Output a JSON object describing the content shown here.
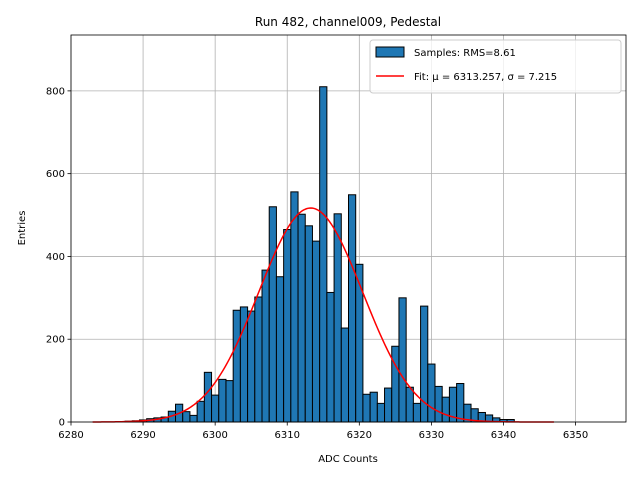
{
  "chart_data": {
    "type": "bar",
    "title": "Run 482, channel009, Pedestal",
    "xlabel": "ADC Counts",
    "ylabel": "Entries",
    "xlim": [
      6280,
      6357
    ],
    "ylim": [
      0,
      935
    ],
    "xticks": [
      6280,
      6290,
      6300,
      6310,
      6320,
      6330,
      6340,
      6350
    ],
    "yticks": [
      0,
      200,
      400,
      600,
      800
    ],
    "grid": true,
    "legend_position": "top-right",
    "colors": {
      "bars": "#1f77b4",
      "bar_edge": "#000000",
      "fit_line": "#ff0000",
      "grid": "#b0b0b0"
    },
    "histogram": {
      "name": "Samples: RMS=8.61",
      "bin_width": 1,
      "bins": [
        {
          "x": 6288,
          "y": 2
        },
        {
          "x": 6289,
          "y": 3
        },
        {
          "x": 6290,
          "y": 5
        },
        {
          "x": 6291,
          "y": 8
        },
        {
          "x": 6292,
          "y": 10
        },
        {
          "x": 6293,
          "y": 12
        },
        {
          "x": 6294,
          "y": 26
        },
        {
          "x": 6295,
          "y": 43
        },
        {
          "x": 6296,
          "y": 25
        },
        {
          "x": 6297,
          "y": 16
        },
        {
          "x": 6298,
          "y": 50
        },
        {
          "x": 6299,
          "y": 120
        },
        {
          "x": 6300,
          "y": 65
        },
        {
          "x": 6301,
          "y": 103
        },
        {
          "x": 6302,
          "y": 100
        },
        {
          "x": 6303,
          "y": 270
        },
        {
          "x": 6304,
          "y": 278
        },
        {
          "x": 6305,
          "y": 268
        },
        {
          "x": 6306,
          "y": 302
        },
        {
          "x": 6307,
          "y": 367
        },
        {
          "x": 6308,
          "y": 520
        },
        {
          "x": 6309,
          "y": 351
        },
        {
          "x": 6310,
          "y": 465
        },
        {
          "x": 6311,
          "y": 556
        },
        {
          "x": 6312,
          "y": 502
        },
        {
          "x": 6313,
          "y": 474
        },
        {
          "x": 6314,
          "y": 437
        },
        {
          "x": 6315,
          "y": 810
        },
        {
          "x": 6316,
          "y": 313
        },
        {
          "x": 6317,
          "y": 503
        },
        {
          "x": 6318,
          "y": 227
        },
        {
          "x": 6319,
          "y": 549
        },
        {
          "x": 6320,
          "y": 381
        },
        {
          "x": 6321,
          "y": 67
        },
        {
          "x": 6322,
          "y": 72
        },
        {
          "x": 6323,
          "y": 45
        },
        {
          "x": 6324,
          "y": 82
        },
        {
          "x": 6325,
          "y": 183
        },
        {
          "x": 6326,
          "y": 300
        },
        {
          "x": 6327,
          "y": 84
        },
        {
          "x": 6328,
          "y": 45
        },
        {
          "x": 6329,
          "y": 280
        },
        {
          "x": 6330,
          "y": 140
        },
        {
          "x": 6331,
          "y": 86
        },
        {
          "x": 6332,
          "y": 60
        },
        {
          "x": 6333,
          "y": 84
        },
        {
          "x": 6334,
          "y": 93
        },
        {
          "x": 6335,
          "y": 43
        },
        {
          "x": 6336,
          "y": 32
        },
        {
          "x": 6337,
          "y": 23
        },
        {
          "x": 6338,
          "y": 17
        },
        {
          "x": 6339,
          "y": 10
        },
        {
          "x": 6340,
          "y": 6
        },
        {
          "x": 6341,
          "y": 6
        }
      ]
    },
    "fit": {
      "name": "Fit: μ = 6313.257, σ = 7.215",
      "mu": 6313.257,
      "sigma": 7.215,
      "amplitude": 517,
      "x_range": [
        6283,
        6347
      ]
    }
  }
}
